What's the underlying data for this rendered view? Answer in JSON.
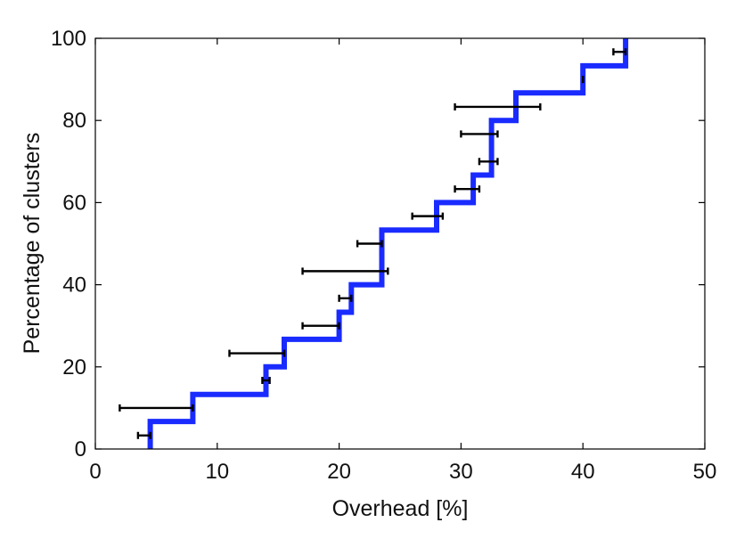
{
  "chart_data": {
    "type": "line",
    "title": "",
    "xlabel": "Overhead [%]",
    "ylabel": "Percentage of clusters",
    "xlim": [
      0,
      50
    ],
    "ylim": [
      0,
      100
    ],
    "xticks": [
      0,
      10,
      20,
      30,
      40,
      50
    ],
    "yticks": [
      0,
      20,
      40,
      60,
      80,
      100
    ],
    "grid": false,
    "colors": {
      "line": "#1a2bff",
      "errorbar": "#000000"
    },
    "series": [
      {
        "step_points": [
          [
            4.5,
            0
          ],
          [
            4.5,
            6.7
          ],
          [
            8,
            6.7
          ],
          [
            8,
            13.3
          ],
          [
            14,
            13.3
          ],
          [
            14,
            20
          ],
          [
            15.5,
            20
          ],
          [
            15.5,
            26.7
          ],
          [
            20,
            26.7
          ],
          [
            20,
            33.3
          ],
          [
            21,
            33.3
          ],
          [
            21,
            40
          ],
          [
            23.5,
            40
          ],
          [
            23.5,
            53.3
          ],
          [
            28,
            53.3
          ],
          [
            28,
            60
          ],
          [
            31,
            60
          ],
          [
            31,
            66.7
          ],
          [
            32.5,
            66.7
          ],
          [
            32.5,
            80
          ],
          [
            34.5,
            80
          ],
          [
            34.5,
            86.7
          ],
          [
            40,
            86.7
          ],
          [
            40,
            93.3
          ],
          [
            43.5,
            93.3
          ],
          [
            43.5,
            100
          ]
        ]
      }
    ],
    "error_bars": [
      {
        "y": 3.3,
        "x_low": 3.5,
        "x_high": 4.5
      },
      {
        "y": 10,
        "x_low": 2,
        "x_high": 8
      },
      {
        "y": 16.7,
        "x_low": 13.7,
        "x_high": 14.3
      },
      {
        "y": 23.3,
        "x_low": 11,
        "x_high": 15.5
      },
      {
        "y": 30,
        "x_low": 17,
        "x_high": 20
      },
      {
        "y": 36.7,
        "x_low": 20,
        "x_high": 21
      },
      {
        "y": 43.3,
        "x_low": 17,
        "x_high": 24
      },
      {
        "y": 50,
        "x_low": 21.5,
        "x_high": 23.5
      },
      {
        "y": 56.7,
        "x_low": 26,
        "x_high": 28.5
      },
      {
        "y": 63.3,
        "x_low": 29.5,
        "x_high": 31.5
      },
      {
        "y": 70,
        "x_low": 31.5,
        "x_high": 33
      },
      {
        "y": 76.7,
        "x_low": 30,
        "x_high": 33
      },
      {
        "y": 83.3,
        "x_low": 29.5,
        "x_high": 36.5
      },
      {
        "y": 90,
        "x_low": 40,
        "x_high": 40
      },
      {
        "y": 96.7,
        "x_low": 42.5,
        "x_high": 43.5
      }
    ]
  }
}
